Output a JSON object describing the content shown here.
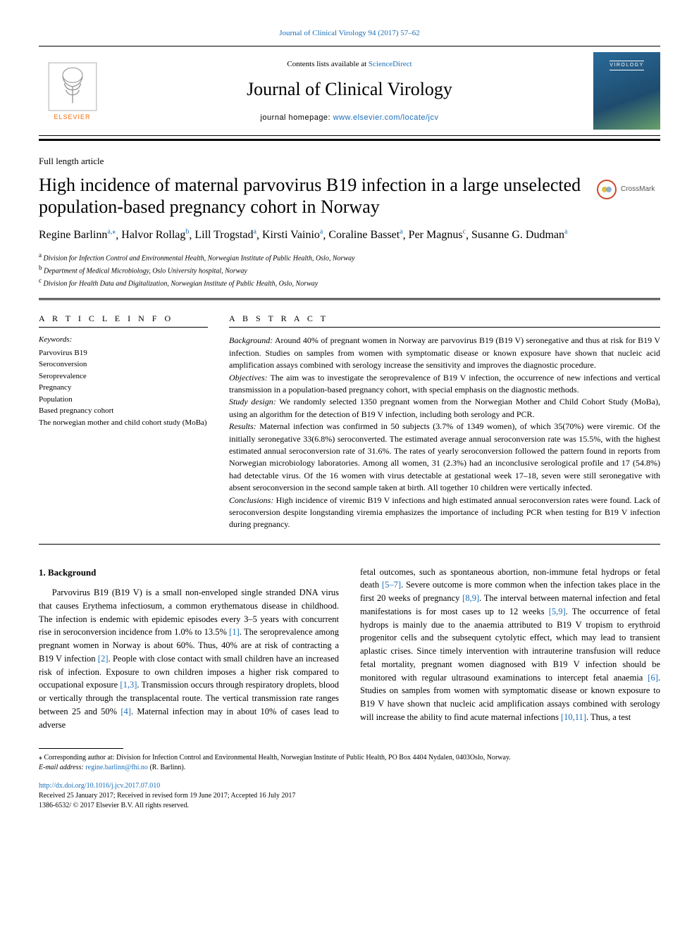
{
  "colors": {
    "link": "#1a6eb8",
    "text": "#000000",
    "elsevier_orange": "#ff6a00",
    "crossmark_ring": "#c94b2a",
    "cover_gradient_from": "#2a6a9a",
    "cover_gradient_to": "#6aa06a"
  },
  "typography": {
    "body_family": "Georgia, 'Times New Roman', serif",
    "body_size_pt": 12.5,
    "title_size_pt": 26,
    "journal_name_size_pt": 26,
    "abstract_size_pt": 12,
    "footnote_size_pt": 10
  },
  "page_header": {
    "citation": "Journal of Clinical Virology 94 (2017) 57–62"
  },
  "masthead": {
    "contents_line_prefix": "Contents lists available at ",
    "contents_line_link": "ScienceDirect",
    "journal_name": "Journal of Clinical Virology",
    "homepage_prefix": "journal homepage: ",
    "homepage_url": "www.elsevier.com/locate/jcv",
    "elsevier_label": "ELSEVIER",
    "cover_label": "VIROLOGY"
  },
  "article": {
    "type": "Full length article",
    "title": "High incidence of maternal parvovirus B19 infection in a large unselected population-based pregnancy cohort in Norway",
    "crossmark_label": "CrossMark"
  },
  "authors": [
    {
      "name": "Regine Barlinn",
      "aff": "a,",
      "corr": "⁎"
    },
    {
      "name": "Halvor Rollag",
      "aff": "b"
    },
    {
      "name": "Lill Trogstad",
      "aff": "a"
    },
    {
      "name": "Kirsti Vainio",
      "aff": "a"
    },
    {
      "name": "Coraline Basset",
      "aff": "a"
    },
    {
      "name": "Per Magnus",
      "aff": "c"
    },
    {
      "name": "Susanne G. Dudman",
      "aff": "a"
    }
  ],
  "affiliations": [
    {
      "sup": "a",
      "text": "Division for Infection Control and Environmental Health, Norwegian Institute of Public Health, Oslo, Norway"
    },
    {
      "sup": "b",
      "text": "Department of Medical Microbiology, Oslo University hospital, Norway"
    },
    {
      "sup": "c",
      "text": "Division for Health Data and Digitalization, Norwegian Institute of Public Health, Oslo, Norway"
    }
  ],
  "article_info": {
    "label": "A R T I C L E  I N F O",
    "keywords_label": "Keywords:",
    "keywords": [
      "Parvovirus B19",
      "Seroconversion",
      "Seroprevalence",
      "Pregnancy",
      "Population",
      "Based pregnancy cohort",
      "The norwegian mother and child cohort study (MoBa)"
    ]
  },
  "abstract": {
    "label": "A B S T R A C T",
    "paragraphs": [
      {
        "lead": "Background:",
        "text": " Around 40% of pregnant women in Norway are parvovirus B19 (B19 V) seronegative and thus at risk for B19 V infection. Studies on samples from women with symptomatic disease or known exposure have shown that nucleic acid amplification assays combined with serology increase the sensitivity and improves the diagnostic procedure."
      },
      {
        "lead": "Objectives:",
        "text": " The aim was to investigate the seroprevalence of B19 V infection, the occurrence of new infections and vertical transmission in a population-based pregnancy cohort, with special emphasis on the diagnostic methods."
      },
      {
        "lead": "Study design:",
        "text": " We randomly selected 1350 pregnant women from the Norwegian Mother and Child Cohort Study (MoBa), using an algorithm for the detection of B19 V infection, including both serology and PCR."
      },
      {
        "lead": "Results:",
        "text": " Maternal infection was confirmed in 50 subjects (3.7% of 1349 women), of which 35(70%) were viremic. Of the initially seronegative 33(6.8%) seroconverted. The estimated average annual seroconversion rate was 15.5%, with the highest estimated annual seroconversion rate of 31.6%. The rates of yearly seroconversion followed the pattern found in reports from Norwegian microbiology laboratories. Among all women, 31 (2.3%) had an inconclusive serological profile and 17 (54.8%) had detectable virus. Of the 16 women with virus detectable at gestational week 17–18, seven were still seronegative with absent seroconversion in the second sample taken at birth. All together 10 children were vertically infected."
      },
      {
        "lead": "Conclusions:",
        "text": " High incidence of viremic B19 V infections and high estimated annual seroconversion rates were found. Lack of seroconversion despite longstanding viremia emphasizes the importance of including PCR when testing for B19 V infection during pregnancy."
      }
    ]
  },
  "body": {
    "heading": "1. Background",
    "col1": "Parvovirus B19 (B19 V) is a small non-enveloped single stranded DNA virus that causes Erythema infectiosum, a common erythematous disease in childhood. The infection is endemic with epidemic episodes every 3–5 years with concurrent rise in seroconversion incidence from 1.0% to 13.5% [1]. The seroprevalence among pregnant women in Norway is about 60%. Thus, 40% are at risk of contracting a B19 V infection [2]. People with close contact with small children have an increased risk of infection. Exposure to own children imposes a higher risk compared to occupational exposure [1,3]. Transmission occurs through respiratory droplets, blood or vertically through the transplacental route. The vertical transmission rate ranges between 25 and 50% [4]. Maternal infection may in about 10% of cases lead to adverse",
    "col2": "fetal outcomes, such as spontaneous abortion, non-immune fetal hydrops or fetal death [5–7]. Severe outcome is more common when the infection takes place in the first 20 weeks of pregnancy [8,9]. The interval between maternal infection and fetal manifestations is for most cases up to 12 weeks [5,9]. The occurrence of fetal hydrops is mainly due to the anaemia attributed to B19 V tropism to erythroid progenitor cells and the subsequent cytolytic effect, which may lead to transient aplastic crises. Since timely intervention with intrauterine transfusion will reduce fetal mortality, pregnant women diagnosed with B19 V infection should be monitored with regular ultrasound examinations to intercept fetal anaemia [6]. Studies on samples from women with symptomatic disease or known exposure to B19 V have shown that nucleic acid amplification assays combined with serology will increase the ability to find acute maternal infections [10,11]. Thus, a test"
  },
  "footnotes": {
    "corr": "⁎ Corresponding author at: Division for Infection Control and Environmental Health, Norwegian Institute of Public Health, PO Box 4404 Nydalen, 0403Oslo, Norway.",
    "email_label": "E-mail address: ",
    "email": "regine.barlinn@fhi.no",
    "email_suffix": " (R. Barlinn)."
  },
  "doi": {
    "url": "http://dx.doi.org/10.1016/j.jcv.2017.07.010",
    "received": "Received 25 January 2017; Received in revised form 19 June 2017; Accepted 16 July 2017",
    "copyright": "1386-6532/ © 2017 Elsevier B.V. All rights reserved."
  }
}
